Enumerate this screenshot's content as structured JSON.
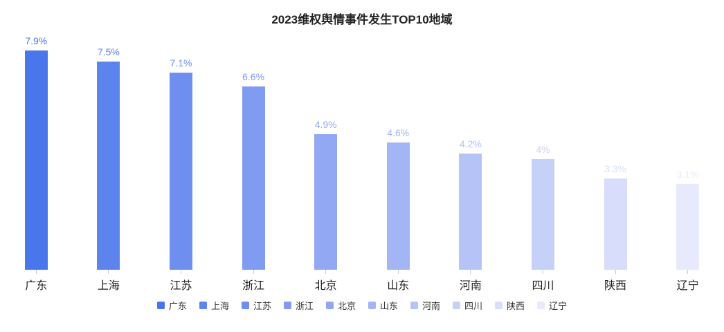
{
  "chart_data": {
    "type": "bar",
    "title": "2023维权舆情事件发生TOP10地域",
    "categories": [
      "广东",
      "上海",
      "江苏",
      "浙江",
      "北京",
      "山东",
      "河南",
      "四川",
      "陕西",
      "辽宁"
    ],
    "values": [
      7.9,
      7.5,
      7.1,
      6.6,
      4.9,
      4.6,
      4.2,
      4,
      3.3,
      3.1
    ],
    "value_labels": [
      "7.9%",
      "7.5%",
      "7.1%",
      "6.6%",
      "4.9%",
      "4.6%",
      "4.2%",
      "4%",
      "3.3%",
      "3.1%"
    ],
    "bar_colors": [
      "#4a76ec",
      "#5d83ed",
      "#6e8ff0",
      "#809bf2",
      "#92a8f3",
      "#a4b5f5",
      "#b5c3f7",
      "#c6d1f8",
      "#d7ddfa",
      "#e6eafc"
    ],
    "unit": "%",
    "xlabel": "",
    "ylabel": "",
    "ylim": [
      0,
      8.8
    ],
    "grid": false,
    "axis_line": false,
    "tick_color": "#cccccc",
    "legend_position": "bottom",
    "legend": [
      "广东",
      "上海",
      "江苏",
      "浙江",
      "北京",
      "山东",
      "河南",
      "四川",
      "陕西",
      "辽宁"
    ]
  }
}
